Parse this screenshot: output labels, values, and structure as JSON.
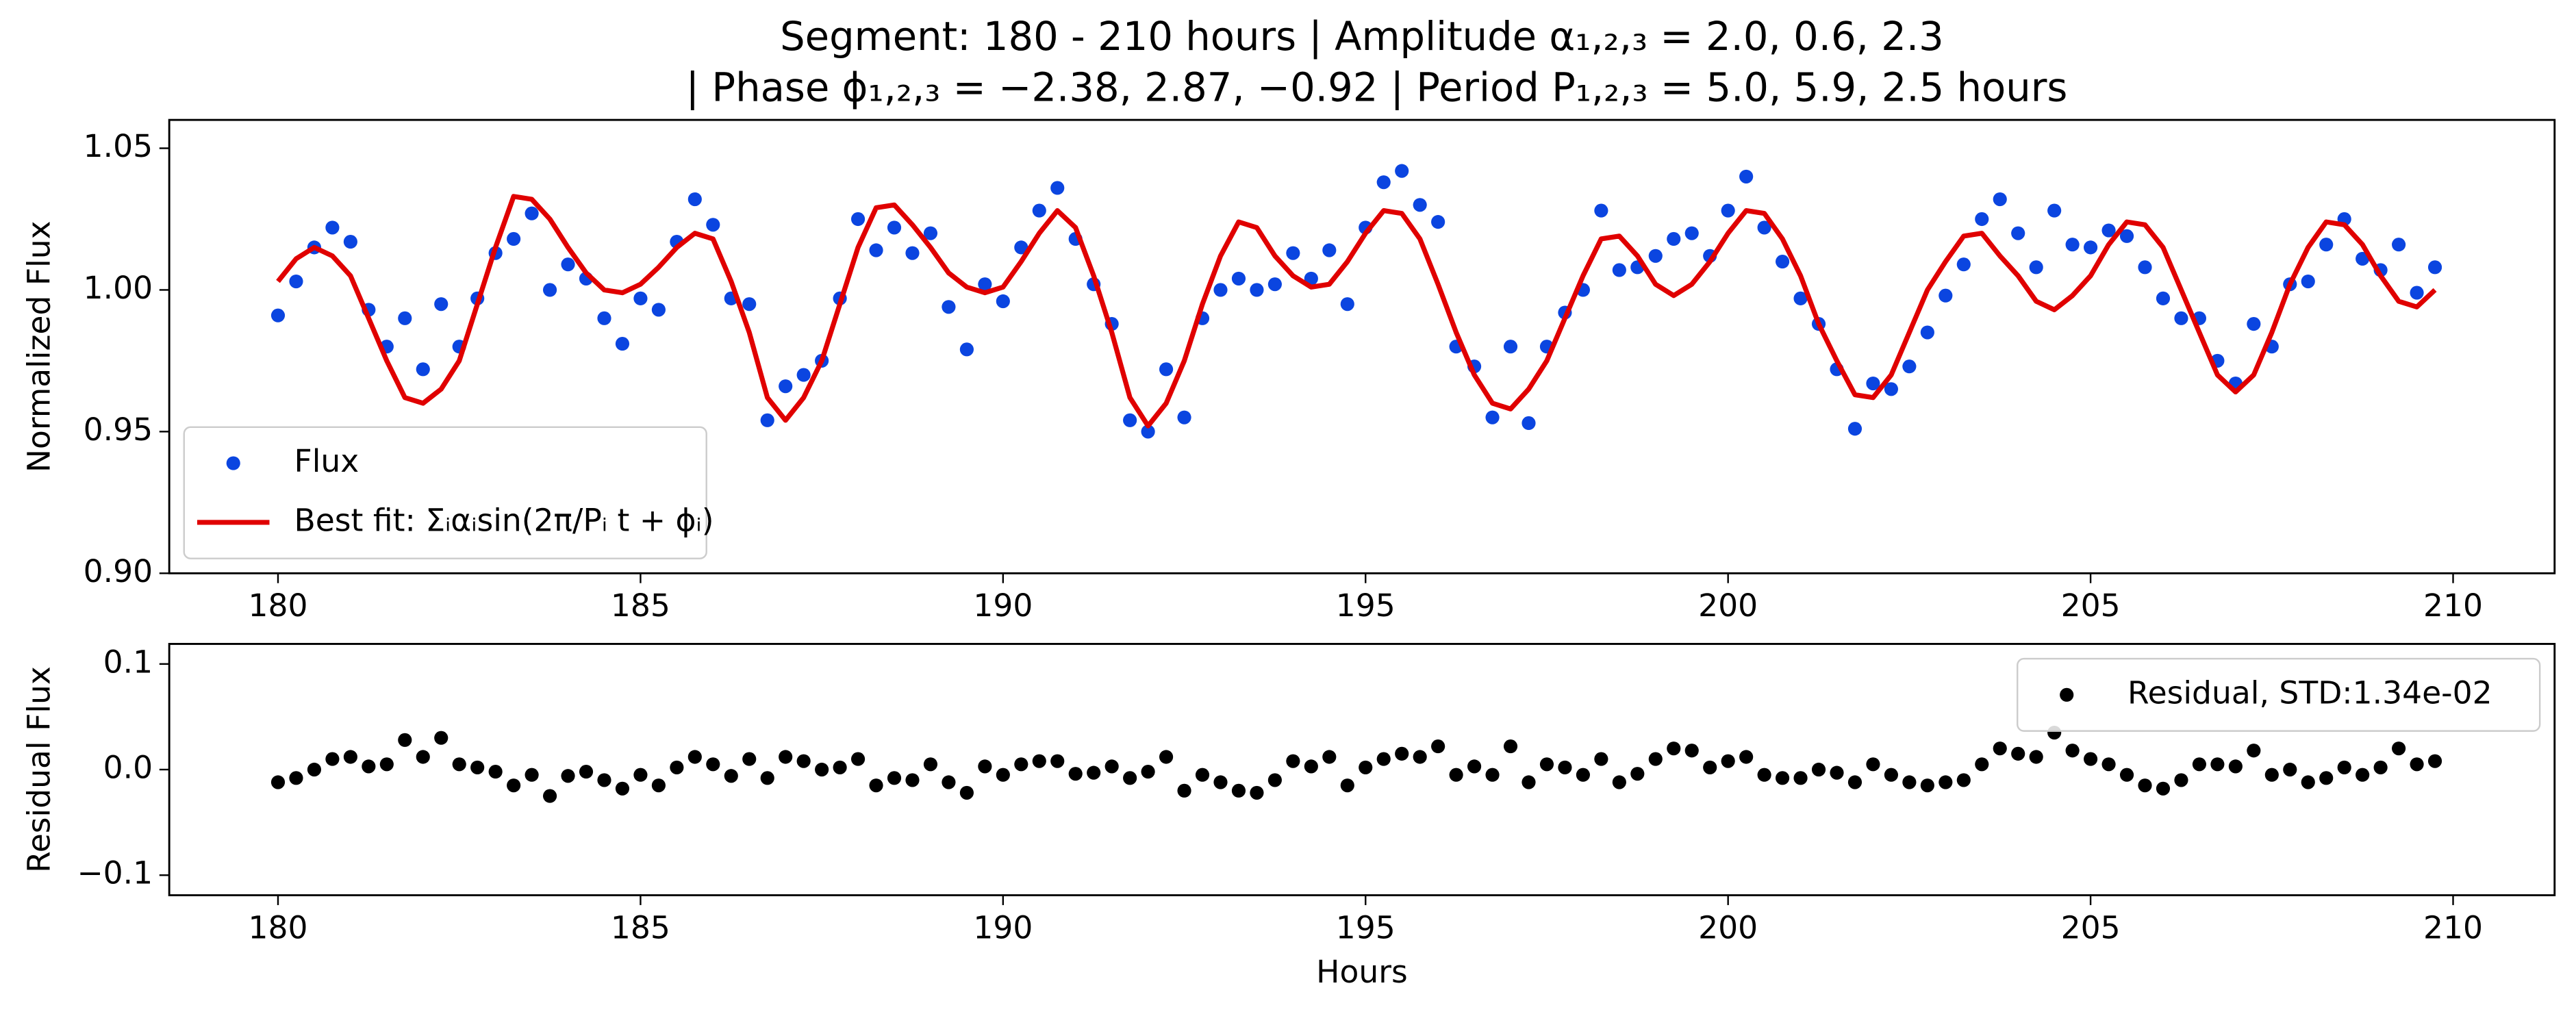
{
  "chart_data": [
    {
      "type": "scatter",
      "title": [
        "Segment: 180 - 210 hours  |  Amplitude α₁,₂,₃ = 2.0, 0.6, 2.3",
        "|  Phase ϕ₁,₂,₃ = −2.38, 2.87, −0.92  |  Period P₁,₂,₃ = 5.0, 5.9, 2.5 hours"
      ],
      "ylabel": "Normalized Flux",
      "x": [
        180.0,
        180.25,
        180.5,
        180.75,
        181.0,
        181.25,
        181.5,
        181.75,
        182.0,
        182.25,
        182.5,
        182.75,
        183.0,
        183.25,
        183.5,
        183.75,
        184.0,
        184.25,
        184.5,
        184.75,
        185.0,
        185.25,
        185.5,
        185.75,
        186.0,
        186.25,
        186.5,
        186.75,
        187.0,
        187.25,
        187.5,
        187.75,
        188.0,
        188.25,
        188.5,
        188.75,
        189.0,
        189.25,
        189.5,
        189.75,
        190.0,
        190.25,
        190.5,
        190.75,
        191.0,
        191.25,
        191.5,
        191.75,
        192.0,
        192.25,
        192.5,
        192.75,
        193.0,
        193.25,
        193.5,
        193.75,
        194.0,
        194.25,
        194.5,
        194.75,
        195.0,
        195.25,
        195.5,
        195.75,
        196.0,
        196.25,
        196.5,
        196.75,
        197.0,
        197.25,
        197.5,
        197.75,
        198.0,
        198.25,
        198.5,
        198.75,
        199.0,
        199.25,
        199.5,
        199.75,
        200.0,
        200.25,
        200.5,
        200.75,
        201.0,
        201.25,
        201.5,
        201.75,
        202.0,
        202.25,
        202.5,
        202.75,
        203.0,
        203.25,
        203.5,
        203.75,
        204.0,
        204.25,
        204.5,
        204.75,
        205.0,
        205.25,
        205.5,
        205.75,
        206.0,
        206.25,
        206.5,
        206.75,
        207.0,
        207.25,
        207.5,
        207.75,
        208.0,
        208.25,
        208.5,
        208.75,
        209.0,
        209.25,
        209.5,
        209.75
      ],
      "series": [
        {
          "name": "Flux",
          "color": "#0b45e0",
          "mode": "markers",
          "values": [
            0.991,
            1.003,
            1.015,
            1.022,
            1.017,
            0.993,
            0.98,
            0.99,
            0.972,
            0.995,
            0.98,
            0.997,
            1.013,
            1.018,
            1.027,
            1.0,
            1.009,
            1.004,
            0.99,
            0.981,
            0.997,
            0.993,
            1.017,
            1.032,
            1.023,
            0.997,
            0.995,
            0.954,
            0.966,
            0.97,
            0.975,
            0.997,
            1.025,
            1.014,
            1.022,
            1.013,
            1.02,
            0.994,
            0.979,
            1.002,
            0.996,
            1.015,
            1.028,
            1.036,
            1.018,
            1.002,
            0.988,
            0.954,
            0.95,
            0.972,
            0.955,
            0.99,
            1.0,
            1.004,
            1.0,
            1.002,
            1.013,
            1.004,
            1.014,
            0.995,
            1.022,
            1.038,
            1.042,
            1.03,
            1.024,
            0.98,
            0.973,
            0.955,
            0.98,
            0.953,
            0.98,
            0.992,
            1.0,
            1.028,
            1.007,
            1.008,
            1.012,
            1.018,
            1.02,
            1.012,
            1.028,
            1.04,
            1.022,
            1.01,
            0.997,
            0.988,
            0.972,
            0.951,
            0.967,
            0.965,
            0.973,
            0.985,
            0.998,
            1.009,
            1.025,
            1.032,
            1.02,
            1.008,
            1.028,
            1.016,
            1.015,
            1.021,
            1.019,
            1.008,
            0.997,
            0.99,
            0.99,
            0.975,
            0.967,
            0.988,
            0.98,
            1.002,
            1.003,
            1.016,
            1.025,
            1.011,
            1.007,
            1.016,
            0.999,
            1.008
          ]
        },
        {
          "name": "Best fit: Σᵢαᵢsin(2π/Pᵢ t + ϕᵢ)",
          "color": "#e00000",
          "mode": "line",
          "values": [
            1.003,
            1.011,
            1.015,
            1.012,
            1.005,
            0.99,
            0.975,
            0.962,
            0.96,
            0.965,
            0.975,
            0.995,
            1.015,
            1.033,
            1.032,
            1.025,
            1.015,
            1.006,
            1.0,
            0.999,
            1.002,
            1.008,
            1.015,
            1.02,
            1.018,
            1.003,
            0.985,
            0.962,
            0.954,
            0.962,
            0.975,
            0.995,
            1.015,
            1.029,
            1.03,
            1.023,
            1.015,
            1.006,
            1.001,
            0.999,
            1.001,
            1.01,
            1.02,
            1.028,
            1.022,
            1.005,
            0.985,
            0.962,
            0.952,
            0.96,
            0.975,
            0.995,
            1.012,
            1.024,
            1.022,
            1.012,
            1.005,
            1.001,
            1.002,
            1.01,
            1.02,
            1.028,
            1.027,
            1.018,
            1.002,
            0.985,
            0.97,
            0.96,
            0.958,
            0.965,
            0.975,
            0.99,
            1.005,
            1.018,
            1.019,
            1.012,
            1.002,
            0.998,
            1.002,
            1.01,
            1.02,
            1.028,
            1.027,
            1.018,
            1.005,
            0.988,
            0.975,
            0.963,
            0.962,
            0.97,
            0.985,
            1.0,
            1.01,
            1.019,
            1.02,
            1.012,
            1.005,
            0.996,
            0.993,
            0.998,
            1.005,
            1.016,
            1.024,
            1.023,
            1.015,
            1.0,
            0.985,
            0.97,
            0.964,
            0.97,
            0.985,
            1.002,
            1.015,
            1.024,
            1.023,
            1.016,
            1.005,
            0.996,
            0.994,
            1.0
          ]
        }
      ],
      "xlim": [
        178.5,
        211.4
      ],
      "xticks": [
        180,
        185,
        190,
        195,
        200,
        205,
        210
      ],
      "ylim": [
        0.9,
        1.06
      ],
      "yticks": [
        {
          "value": 0.9,
          "label": "0.90"
        },
        {
          "value": 0.95,
          "label": "0.95"
        },
        {
          "value": 1.0,
          "label": "1.00"
        },
        {
          "value": 1.05,
          "label": "1.05"
        }
      ],
      "legend": "lower left"
    },
    {
      "type": "scatter",
      "xlabel": "Hours",
      "ylabel": "Residual Flux",
      "x": [
        180.0,
        180.25,
        180.5,
        180.75,
        181.0,
        181.25,
        181.5,
        181.75,
        182.0,
        182.25,
        182.5,
        182.75,
        183.0,
        183.25,
        183.5,
        183.75,
        184.0,
        184.25,
        184.5,
        184.75,
        185.0,
        185.25,
        185.5,
        185.75,
        186.0,
        186.25,
        186.5,
        186.75,
        187.0,
        187.25,
        187.5,
        187.75,
        188.0,
        188.25,
        188.5,
        188.75,
        189.0,
        189.25,
        189.5,
        189.75,
        190.0,
        190.25,
        190.5,
        190.75,
        191.0,
        191.25,
        191.5,
        191.75,
        192.0,
        192.25,
        192.5,
        192.75,
        193.0,
        193.25,
        193.5,
        193.75,
        194.0,
        194.25,
        194.5,
        194.75,
        195.0,
        195.25,
        195.5,
        195.75,
        196.0,
        196.25,
        196.5,
        196.75,
        197.0,
        197.25,
        197.5,
        197.75,
        198.0,
        198.25,
        198.5,
        198.75,
        199.0,
        199.25,
        199.5,
        199.75,
        200.0,
        200.25,
        200.5,
        200.75,
        201.0,
        201.25,
        201.5,
        201.75,
        202.0,
        202.25,
        202.5,
        202.75,
        203.0,
        203.25,
        203.5,
        203.75,
        204.0,
        204.25,
        204.5,
        204.75,
        205.0,
        205.25,
        205.5,
        205.75,
        206.0,
        206.25,
        206.5,
        206.75,
        207.0,
        207.25,
        207.5,
        207.75,
        208.0,
        208.25,
        208.5,
        208.75,
        209.0,
        209.25,
        209.5,
        209.75
      ],
      "series": [
        {
          "name": "Residual, STD:1.34e-02",
          "color": "#000000",
          "mode": "markers",
          "values": [
            -0.012,
            -0.008,
            0.0,
            0.01,
            0.012,
            0.003,
            0.005,
            0.028,
            0.012,
            0.03,
            0.005,
            0.002,
            -0.002,
            -0.015,
            -0.005,
            -0.025,
            -0.006,
            -0.002,
            -0.01,
            -0.018,
            -0.005,
            -0.015,
            0.002,
            0.012,
            0.005,
            -0.006,
            0.01,
            -0.008,
            0.012,
            0.008,
            0.0,
            0.002,
            0.01,
            -0.015,
            -0.008,
            -0.01,
            0.005,
            -0.012,
            -0.022,
            0.003,
            -0.005,
            0.005,
            0.008,
            0.008,
            -0.004,
            -0.003,
            0.003,
            -0.008,
            -0.002,
            0.012,
            -0.02,
            -0.005,
            -0.012,
            -0.02,
            -0.022,
            -0.01,
            0.008,
            0.003,
            0.012,
            -0.015,
            0.002,
            0.01,
            0.015,
            0.012,
            0.022,
            -0.005,
            0.003,
            -0.005,
            0.022,
            -0.012,
            0.005,
            0.002,
            -0.005,
            0.01,
            -0.012,
            -0.004,
            0.01,
            0.02,
            0.018,
            0.002,
            0.008,
            0.012,
            -0.005,
            -0.008,
            -0.008,
            0.0,
            -0.003,
            -0.012,
            0.005,
            -0.005,
            -0.012,
            -0.015,
            -0.012,
            -0.01,
            0.005,
            0.02,
            0.015,
            0.012,
            0.035,
            0.018,
            0.01,
            0.005,
            -0.005,
            -0.015,
            -0.018,
            -0.01,
            0.005,
            0.005,
            0.003,
            0.018,
            -0.005,
            0.0,
            -0.012,
            -0.008,
            0.002,
            -0.005,
            0.002,
            0.02,
            0.005,
            0.008
          ]
        }
      ],
      "xlim": [
        178.5,
        211.4
      ],
      "xticks": [
        180,
        185,
        190,
        195,
        200,
        205,
        210
      ],
      "ylim": [
        -0.119,
        0.119
      ],
      "yticks": [
        {
          "value": -0.1,
          "label": "−0.1"
        },
        {
          "value": 0,
          "label": "0.0"
        },
        {
          "value": 0.1,
          "label": "0.1"
        }
      ],
      "legend": "upper right"
    }
  ]
}
